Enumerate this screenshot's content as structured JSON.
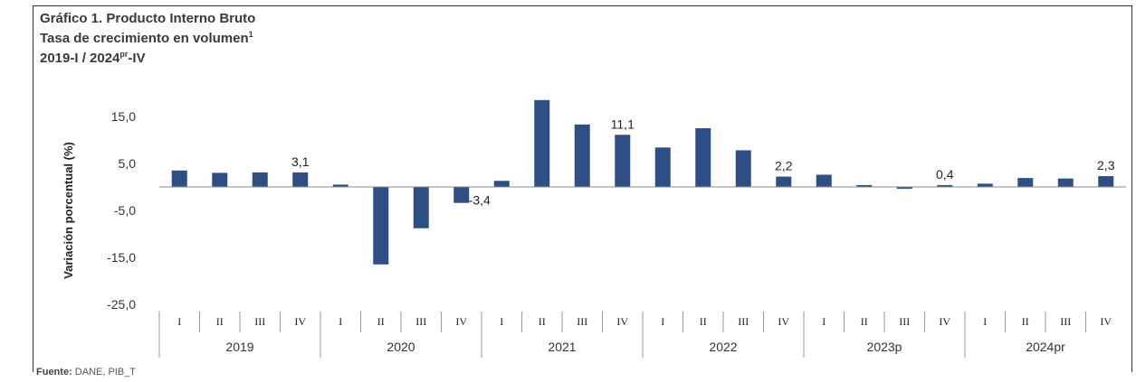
{
  "header": {
    "title": "Gráfico 1. Producto Interno Bruto",
    "subtitle": "Tasa de crecimiento en volumen",
    "subtitle_note": "1",
    "period_start": "2019-I / 2024",
    "period_sup": "pr",
    "period_end": "-IV"
  },
  "footer": {
    "source_label": "Fuente:",
    "source_text": " DANE, PIB_T"
  },
  "chart_data": {
    "type": "bar",
    "ylabel": "Variación porcentual (%)",
    "ylim": [
      -25,
      20
    ],
    "yticks": [
      15,
      5,
      -5,
      -15,
      -25
    ],
    "ytick_labels": [
      "15,0",
      "5,0",
      "-5,0",
      "-15,0",
      "-25,0"
    ],
    "bar_color": "#2e4f86",
    "years": [
      "2019",
      "2020",
      "2021",
      "2022",
      "2023p",
      "2024pr"
    ],
    "quarters": [
      "I",
      "II",
      "III",
      "IV"
    ],
    "values": [
      3.5,
      3.0,
      3.1,
      3.1,
      0.5,
      -16.5,
      -8.8,
      -3.4,
      1.3,
      18.5,
      13.3,
      11.1,
      8.4,
      12.5,
      7.8,
      2.2,
      2.6,
      0.4,
      -0.4,
      0.4,
      0.7,
      1.9,
      1.8,
      2.3
    ],
    "data_labels": [
      {
        "index": 3,
        "text": "3,1"
      },
      {
        "index": 7,
        "text": "-3,4"
      },
      {
        "index": 11,
        "text": "11,1"
      },
      {
        "index": 15,
        "text": "2,2"
      },
      {
        "index": 19,
        "text": "0,4"
      },
      {
        "index": 23,
        "text": "2,3"
      }
    ],
    "grid": false,
    "legend": "none"
  }
}
